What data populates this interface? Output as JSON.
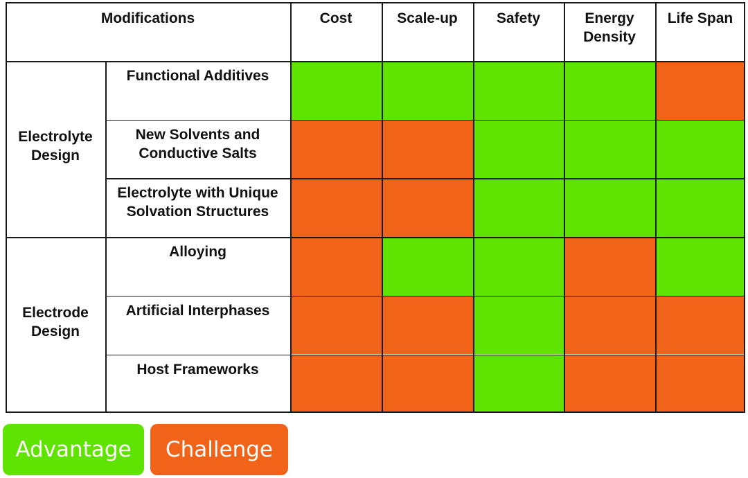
{
  "colors": {
    "advantage": "#5ee400",
    "challenge": "#f2631a",
    "line": "#1a1a1a"
  },
  "header": {
    "modifications": "Modifications",
    "columns": [
      "Cost",
      "Scale-up",
      "Safety",
      "Energy\nDensity",
      "Life Span"
    ]
  },
  "groups": [
    {
      "label": "Electrolyte\nDesign",
      "rows": [
        {
          "label": "Functional Additives",
          "ratings": [
            "advantage",
            "advantage",
            "advantage",
            "advantage",
            "challenge"
          ]
        },
        {
          "label": "New Solvents and\nConductive Salts",
          "ratings": [
            "challenge",
            "challenge",
            "advantage",
            "advantage",
            "advantage"
          ]
        },
        {
          "label": "Electrolyte with Unique\nSolvation Structures",
          "ratings": [
            "challenge",
            "challenge",
            "advantage",
            "advantage",
            "advantage"
          ]
        }
      ]
    },
    {
      "label": "Electrode\nDesign",
      "rows": [
        {
          "label": "Alloying",
          "ratings": [
            "challenge",
            "advantage",
            "advantage",
            "challenge",
            "advantage"
          ]
        },
        {
          "label": "Artificial Interphases",
          "ratings": [
            "challenge",
            "challenge",
            "advantage",
            "challenge",
            "challenge"
          ]
        },
        {
          "label": "Host Frameworks",
          "ratings": [
            "challenge",
            "challenge",
            "advantage",
            "challenge",
            "challenge"
          ]
        }
      ]
    }
  ],
  "legend": {
    "advantage_label": "Advantage",
    "challenge_label": "Challenge"
  }
}
